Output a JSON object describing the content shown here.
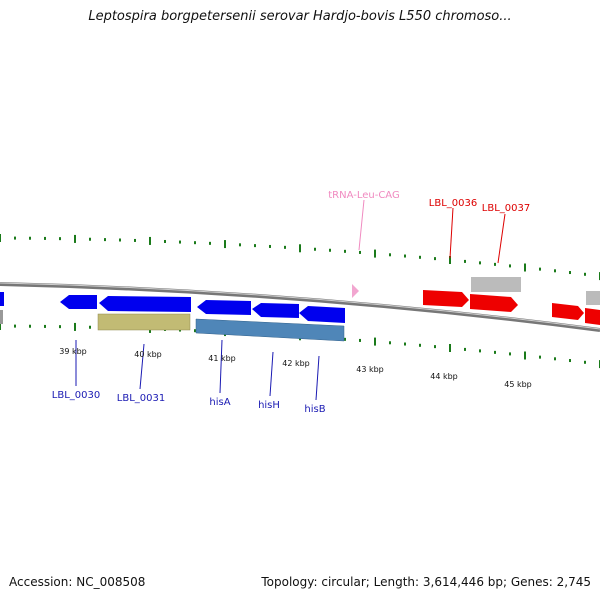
{
  "header": {
    "title": "Leptospira borgpetersenii serovar Hardjo-bovis L550 chromoso..."
  },
  "footer": {
    "accession": "Accession: NC_008508",
    "summary": "Topology: circular; Length: 3,614,446 bp; Genes: 2,745"
  },
  "colors": {
    "backbone": "#888888",
    "tick": "#1a7a1a",
    "forward_gene": "#ee0000",
    "reverse_gene": "#0000ee",
    "cds_olive": "#c2bb74",
    "cds_steel": "#4f86b8",
    "gray_feature": "#bbbbbb",
    "trna": "#f2a6d0",
    "label_blue": "#1a1ab3",
    "label_red": "#dd0000",
    "label_pink": "#f08ac0"
  },
  "scale_labels": [
    "39 kbp",
    "40 kbp",
    "41 kbp",
    "42 kbp",
    "43 kbp",
    "44 kbp",
    "45 kbp"
  ],
  "gene_labels": {
    "lbl_0030": "LBL_0030",
    "lbl_0031": "LBL_0031",
    "hisA": "hisA",
    "hisH": "hisH",
    "hisB": "hisB",
    "trna_leu": "tRNA-Leu-CAG",
    "lbl_0036": "LBL_0036",
    "lbl_0037": "LBL_0037"
  }
}
